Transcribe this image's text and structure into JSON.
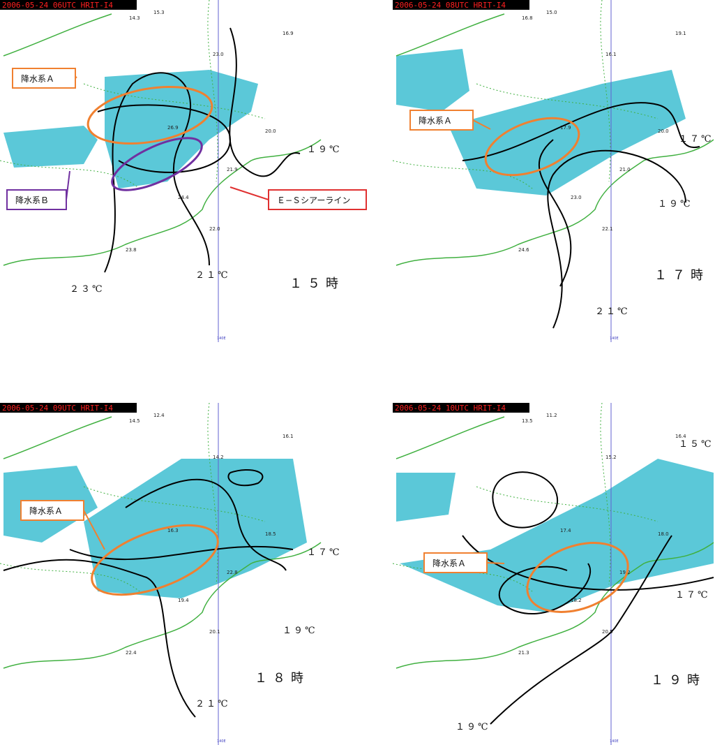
{
  "panels": [
    {
      "header": "2006-05-24 06UTC HRIT-I4",
      "time": "１５時",
      "meridian": "140E",
      "isotherms": [
        "１９℃",
        "２１℃",
        "２３℃"
      ],
      "callouts": [
        "降水系Ａ",
        "降水系Ｂ",
        "Ｅ−Ｓシアーライン"
      ],
      "stations": [
        "15.3",
        "14.3",
        "16.9",
        "23.0",
        "26.9",
        "20.0",
        "24.4",
        "21.9",
        "22.0",
        "23.8"
      ]
    },
    {
      "header": "2006-05-24 08UTC HRIT-I4",
      "time": "１７時",
      "meridian": "140E",
      "isotherms": [
        "１７℃",
        "１９℃",
        "２１℃"
      ],
      "callouts": [
        "降水系Ａ"
      ],
      "stations": [
        "15.0",
        "16.8",
        "19.1",
        "16.1",
        "17.9",
        "20.0",
        "23.0",
        "21.0",
        "22.1",
        "24.6"
      ]
    },
    {
      "header": "2006-05-24 09UTC HRIT-I4",
      "time": "１８時",
      "meridian": "140E",
      "isotherms": [
        "１７℃",
        "１９℃",
        "２１℃"
      ],
      "callouts": [
        "降水系Ａ"
      ],
      "stations": [
        "12.4",
        "14.5",
        "16.1",
        "14.2",
        "16.3",
        "18.5",
        "19.4",
        "22.8",
        "20.1",
        "22.4"
      ]
    },
    {
      "header": "2006-05-24 10UTC HRIT-I4",
      "time": "１９時",
      "meridian": "140E",
      "isotherms": [
        "１５℃",
        "１７℃",
        "１９℃"
      ],
      "callouts": [
        "降水系Ａ"
      ],
      "stations": [
        "11.2",
        "13.5",
        "16.4",
        "15.2",
        "17.4",
        "18.0",
        "18.2",
        "19.2",
        "20.5",
        "21.3"
      ]
    }
  ]
}
